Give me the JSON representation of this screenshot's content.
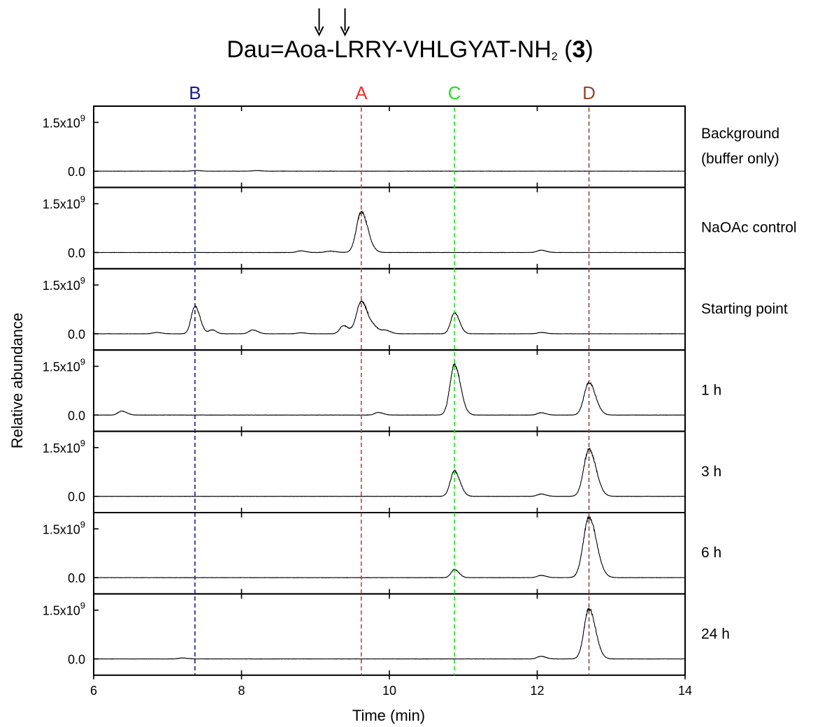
{
  "title": {
    "main": "Dau=Aoa-LRRY-VHLGYAT-NH",
    "subscript": "2",
    "open_paren": " (",
    "compound": "3",
    "close_paren": ")",
    "cleavage_arrows": [
      9.05,
      9.4
    ]
  },
  "chart_data": {
    "type": "line",
    "xlabel": "Time (min)",
    "ylabel": "Relative abundance",
    "xlim": [
      6,
      14
    ],
    "x_ticks": [
      6,
      8,
      10,
      12,
      14
    ],
    "y_ticks": [
      {
        "value": 0.0,
        "label": "0.0"
      },
      {
        "value": 1.5,
        "label": "1.5x10",
        "exponent": "9"
      }
    ],
    "ylim_per_panel": [
      -0.5,
      2.0
    ],
    "y_unit_multiplier": 1000000000,
    "reference_lines": [
      {
        "label": "B",
        "x": 7.37,
        "color": "#1a1a8c"
      },
      {
        "label": "A",
        "x": 9.62,
        "color": "#e8302c"
      },
      {
        "label": "C",
        "x": 10.88,
        "color": "#22dd22"
      },
      {
        "label": "D",
        "x": 12.7,
        "color": "#8b4a2b"
      }
    ],
    "series": [
      {
        "name": "Background (buffer only)",
        "label_lines": [
          "Background",
          "(buffer only)"
        ],
        "peaks": [
          [
            7.38,
            0.02,
            0.05
          ],
          [
            8.2,
            0.02,
            0.05
          ]
        ]
      },
      {
        "name": "NaOAc control",
        "label_lines": [
          "NaOAc control"
        ],
        "peaks": [
          [
            8.8,
            0.05,
            0.05
          ],
          [
            9.2,
            0.04,
            0.06
          ],
          [
            9.62,
            1.25,
            0.065
          ],
          [
            12.05,
            0.07,
            0.05
          ]
        ]
      },
      {
        "name": "Starting point",
        "label_lines": [
          "Starting point"
        ],
        "peaks": [
          [
            6.85,
            0.04,
            0.05
          ],
          [
            7.37,
            0.85,
            0.05
          ],
          [
            7.6,
            0.12,
            0.04
          ],
          [
            8.15,
            0.12,
            0.05
          ],
          [
            8.8,
            0.03,
            0.05
          ],
          [
            9.38,
            0.25,
            0.05
          ],
          [
            9.62,
            1.0,
            0.065
          ],
          [
            9.8,
            0.15,
            0.05
          ],
          [
            9.95,
            0.1,
            0.05
          ],
          [
            10.88,
            0.65,
            0.05
          ],
          [
            12.05,
            0.04,
            0.05
          ]
        ]
      },
      {
        "name": "1 h",
        "label_lines": [
          "1 h"
        ],
        "peaks": [
          [
            6.38,
            0.12,
            0.05
          ],
          [
            9.85,
            0.08,
            0.05
          ],
          [
            10.88,
            1.55,
            0.06
          ],
          [
            12.05,
            0.07,
            0.05
          ],
          [
            12.7,
            1.0,
            0.065
          ]
        ]
      },
      {
        "name": "3 h",
        "label_lines": [
          "3 h"
        ],
        "peaks": [
          [
            10.88,
            0.78,
            0.055
          ],
          [
            12.05,
            0.07,
            0.05
          ],
          [
            12.7,
            1.45,
            0.07
          ]
        ]
      },
      {
        "name": "6 h",
        "label_lines": [
          "6 h"
        ],
        "peaks": [
          [
            10.88,
            0.25,
            0.045
          ],
          [
            12.05,
            0.07,
            0.05
          ],
          [
            12.7,
            1.85,
            0.075
          ]
        ]
      },
      {
        "name": "24 h",
        "label_lines": [
          "24 h"
        ],
        "peaks": [
          [
            7.2,
            0.03,
            0.05
          ],
          [
            12.05,
            0.08,
            0.05
          ],
          [
            12.7,
            1.55,
            0.065
          ]
        ]
      }
    ]
  }
}
